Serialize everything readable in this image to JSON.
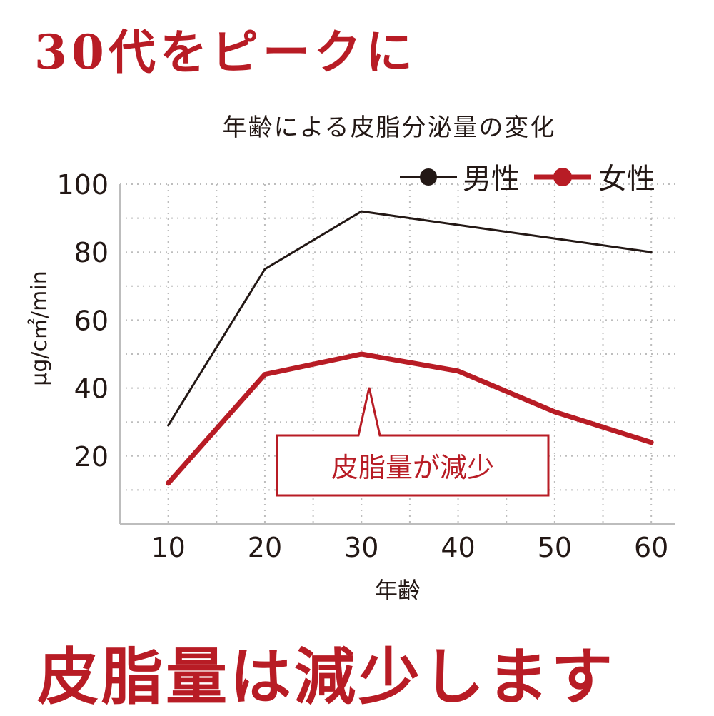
{
  "headline_top": "30代をピークに",
  "headline_bottom": "皮脂量は減少します",
  "colors": {
    "accent": "#b81c25",
    "male_line": "#231815",
    "grid": "#bdbdbd"
  },
  "chart_data": {
    "type": "line",
    "title": "年齢による皮脂分泌量の変化",
    "xlabel": "年齢",
    "ylabel": "μg/c㎡/min",
    "x": [
      10,
      20,
      30,
      40,
      50,
      60
    ],
    "x_ticks": [
      "10",
      "20",
      "30",
      "40",
      "50",
      "60"
    ],
    "y_ticks": [
      "20",
      "40",
      "60",
      "80",
      "100"
    ],
    "xlim": [
      5,
      62.5
    ],
    "ylim": [
      0,
      100
    ],
    "grid": true,
    "legend_position": "top-right",
    "series": [
      {
        "name": "男性",
        "color": "#231815",
        "values": [
          29,
          75,
          92,
          88,
          84,
          80
        ]
      },
      {
        "name": "女性",
        "color": "#b81c25",
        "values": [
          12,
          44,
          50,
          45,
          33,
          24
        ]
      }
    ],
    "annotation": {
      "text": "皮脂量が減少",
      "x": 31,
      "y": 43
    }
  }
}
